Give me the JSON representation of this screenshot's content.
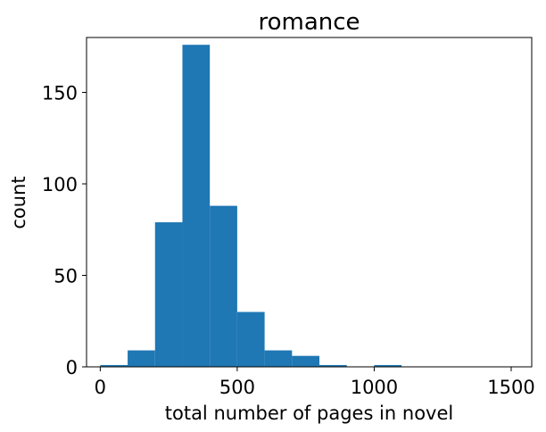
{
  "chart_data": {
    "type": "histogram",
    "title": "romance",
    "xlabel": "total number of pages in novel",
    "ylabel": "count",
    "bin_edges": [
      0,
      100,
      200,
      300,
      400,
      500,
      600,
      700,
      800,
      900,
      1000,
      1100,
      1200,
      1300,
      1400,
      1500
    ],
    "values": [
      1,
      9,
      79,
      176,
      88,
      30,
      9,
      6,
      1,
      0,
      1,
      0,
      0,
      0,
      0
    ],
    "xlim": [
      -50,
      1575
    ],
    "ylim": [
      0,
      180
    ],
    "xticks": [
      0,
      500,
      1000,
      1500
    ],
    "xtick_labels": [
      "0",
      "500",
      "1000",
      "1500"
    ],
    "yticks": [
      0,
      50,
      100,
      150
    ],
    "ytick_labels": [
      "0",
      "50",
      "100",
      "150"
    ],
    "grid": false,
    "legend": null,
    "colors": {
      "bar": "#1f77b4",
      "axis": "#000000",
      "background": "#ffffff"
    }
  }
}
